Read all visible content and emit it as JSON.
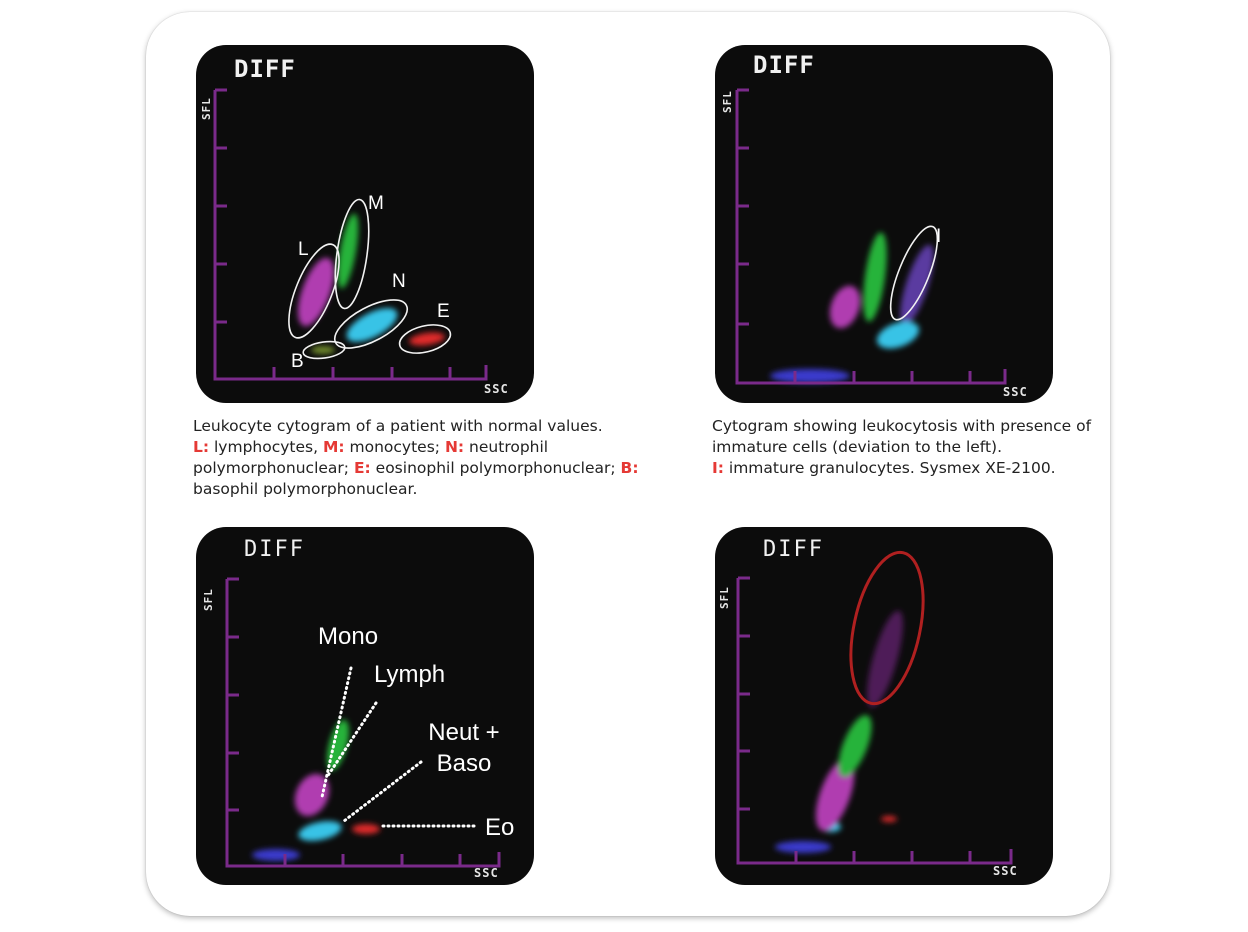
{
  "colors": {
    "axis": "#7a2a8a",
    "lymphocytes": "#b03cb0",
    "monocytes": "#27b33a",
    "neutrophils": "#39c3e6",
    "eosinophils": "#e02c2c",
    "basophils": "#6f8a2a",
    "debris": "#3a3acc",
    "immature": "#5a3aa0",
    "key_letter": "#e53935",
    "highlight_ring": "#b02020"
  },
  "panels": [
    {
      "title": "DIFF",
      "y_axis": "SFL",
      "x_axis": "SSC",
      "labels": {
        "M": "M",
        "L": "L",
        "N": "N",
        "E": "E",
        "B": "B"
      }
    },
    {
      "title": "DIFF",
      "y_axis": "SFL",
      "x_axis": "SSC",
      "labels": {
        "I": "I"
      }
    },
    {
      "title": "DIFF",
      "y_axis": "SFL",
      "x_axis": "SSC",
      "labels": {
        "mono": "Mono",
        "lymph": "Lymph",
        "neut_1": "Neut +",
        "neut_2": "Baso",
        "eo": "Eo"
      }
    },
    {
      "title": "DIFF",
      "y_axis": "SFL",
      "x_axis": "SSC",
      "labels": {}
    }
  ],
  "captions": {
    "c1": {
      "line1": "Leukocyte cytogram of a patient with normal values.",
      "L_key": "L:",
      "L_text": " lymphocytes, ",
      "M_key": "M:",
      "M_text": " monocytes; ",
      "N_key": "N:",
      "N_text": " neutrophil polymorphonuclear; ",
      "E_key": "E:",
      "E_text": " eosinophil polymorphonuclear; ",
      "B_key": "B:",
      "B_text": " basophil polymorphonuclear."
    },
    "c2": {
      "line1": "Cytogram showing leukocytosis with presence of immature cells (deviation to the left).",
      "I_key": "I:",
      "I_text": " immature granulocytes. Sysmex XE-2100."
    }
  }
}
